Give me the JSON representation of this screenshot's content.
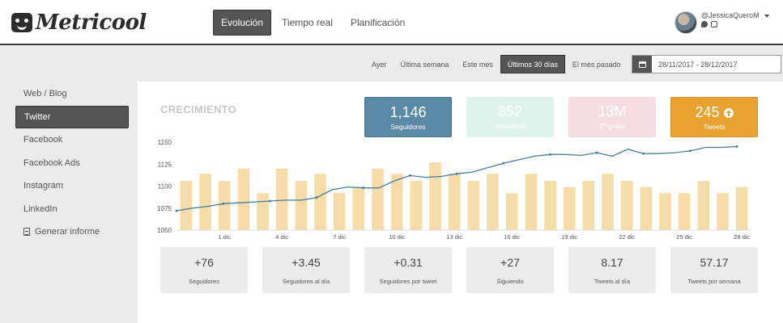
{
  "app": {
    "logo_text": "Metricool"
  },
  "nav": {
    "tabs": [
      "Evolución",
      "Tiempo real",
      "Planificación"
    ],
    "active_index": 0
  },
  "user": {
    "name": "@JessicaQueroM"
  },
  "filters": {
    "items": [
      "Ayer",
      "Última semana",
      "Este mes",
      "Últimos 30 días",
      "El mes pasado"
    ],
    "active_index": 3,
    "date_range": "28/11/2017 - 28/12/2017"
  },
  "sidebar": {
    "items": [
      "Web / Blog",
      "Twitter",
      "Facebook",
      "Facebook Ads",
      "Instagram",
      "LinkedIn"
    ],
    "active_index": 1,
    "report_label": "Generar informe"
  },
  "section_title": "CRECIMIENTO",
  "kpis": [
    {
      "value": "1,146",
      "label": "Seguidores",
      "color": "#5a8aa6"
    },
    {
      "value": "852",
      "label": "Siguiendo",
      "color": "#def3ec"
    },
    {
      "value": "13M",
      "label": "2º grado",
      "color": "#f6dde3"
    },
    {
      "value": "245",
      "label": "Tweets",
      "color": "#e8a230"
    }
  ],
  "stats": [
    {
      "value": "+76",
      "label": "Seguidores"
    },
    {
      "value": "+3.45",
      "label": "Seguidores al día"
    },
    {
      "value": "+0.31",
      "label": "Seguidores por tweet"
    },
    {
      "value": "+27",
      "label": "Siguiendo"
    },
    {
      "value": "8.17",
      "label": "Tweets al día"
    },
    {
      "value": "57.17",
      "label": "Tweets por semana"
    }
  ],
  "chart_data": {
    "type": "bar",
    "x_tick_labels": [
      "1 dic",
      "4 dic",
      "7 dic",
      "10 dic",
      "13 dic",
      "16 dic",
      "19 dic",
      "22 dic",
      "25 dic",
      "28 dic"
    ],
    "y_tick_labels": [
      "1150",
      "1125",
      "1100",
      "1075",
      "1050"
    ],
    "ylim": [
      1050,
      1150
    ],
    "colors": {
      "bars": "#f5dca8",
      "line": "#4b7d9a"
    },
    "bar_values": [
      1106,
      1114,
      1106,
      1120,
      1092,
      1120,
      1106,
      1114,
      1092,
      1099,
      1120,
      1114,
      1106,
      1127,
      1114,
      1106,
      1114,
      1092,
      1114,
      1106,
      1099,
      1106,
      1114,
      1106,
      1099,
      1092,
      1092,
      1106,
      1092,
      1099
    ],
    "line_values": [
      1072,
      1075,
      1077,
      1080,
      1081,
      1082,
      1083,
      1084,
      1084,
      1087,
      1096,
      1099,
      1098,
      1098,
      1106,
      1112,
      1110,
      1111,
      1114,
      1116,
      1121,
      1126,
      1130,
      1134,
      1136,
      1136,
      1135,
      1138,
      1134,
      1142,
      1137,
      1137,
      1138,
      1140,
      1144,
      1144,
      1145
    ]
  }
}
